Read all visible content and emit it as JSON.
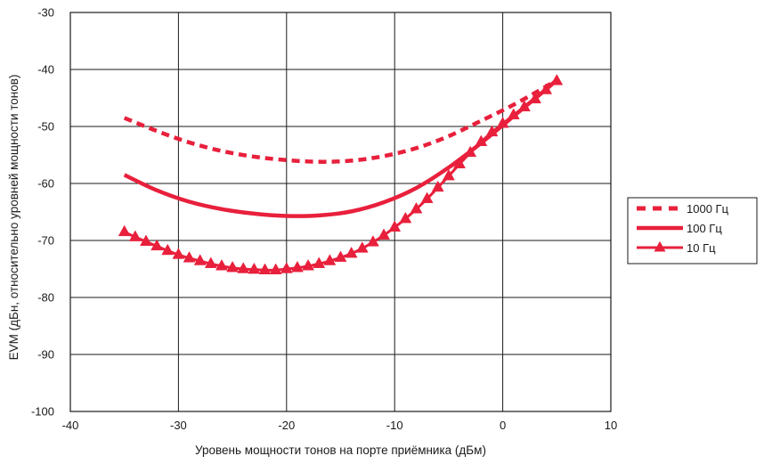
{
  "chart_data": {
    "type": "line",
    "title": "",
    "xlabel": "Уровень мощности тонов на порте приёмника (дБм)",
    "ylabel": "EVM (дБн, относительно уровней мощности тонов)",
    "xlim": [
      -40,
      10
    ],
    "ylim": [
      -100,
      -30
    ],
    "xticks": [
      -40,
      -30,
      -20,
      -10,
      0,
      10
    ],
    "yticks": [
      -100,
      -90,
      -80,
      -70,
      -60,
      -50,
      -40,
      -30
    ],
    "xtick_labels": [
      "-40",
      "-30",
      "-20",
      "-10",
      "0",
      "10"
    ],
    "ytick_labels": [
      "-100",
      "-90",
      "-80",
      "-70",
      "-60",
      "-50",
      "-40",
      "-30"
    ],
    "grid": true,
    "legend_position": "right",
    "color": "#e8203c",
    "series": [
      {
        "name": "1000 Гц",
        "style": "dashed",
        "x": [
          -35,
          -32,
          -29,
          -26,
          -23,
          -20,
          -17,
          -14,
          -11,
          -8,
          -5,
          -2,
          1,
          4,
          5
        ],
        "y": [
          -48.5,
          -50.8,
          -52.8,
          -54.3,
          -55.3,
          -55.9,
          -56.2,
          -56.0,
          -55.2,
          -53.8,
          -51.7,
          -49.0,
          -46.2,
          -43.0,
          -41.8
        ]
      },
      {
        "name": "100 Гц",
        "style": "solid",
        "x": [
          -35,
          -32,
          -29,
          -26,
          -23,
          -20,
          -17,
          -14,
          -11,
          -8,
          -5,
          -2,
          1,
          4,
          5
        ],
        "y": [
          -58.5,
          -61.2,
          -63.2,
          -64.5,
          -65.3,
          -65.7,
          -65.6,
          -64.9,
          -63.3,
          -60.8,
          -57.2,
          -52.9,
          -48.2,
          -43.5,
          -41.8
        ]
      },
      {
        "name": "10 Гц",
        "style": "triangle",
        "x": [
          -35,
          -34,
          -33,
          -32,
          -31,
          -30,
          -29,
          -28,
          -27,
          -26,
          -25,
          -24,
          -23,
          -22,
          -21,
          -20,
          -19,
          -18,
          -17,
          -16,
          -15,
          -14,
          -13,
          -12,
          -11,
          -10,
          -9,
          -8,
          -7,
          -6,
          -5,
          -4,
          -3,
          -2,
          -1,
          0,
          1,
          2,
          3,
          4,
          5
        ],
        "y": [
          -68.5,
          -69.4,
          -70.2,
          -71.0,
          -71.8,
          -72.5,
          -73.1,
          -73.6,
          -74.1,
          -74.5,
          -74.8,
          -75.0,
          -75.1,
          -75.2,
          -75.2,
          -75.0,
          -74.8,
          -74.5,
          -74.1,
          -73.6,
          -73.0,
          -72.3,
          -71.4,
          -70.3,
          -69.1,
          -67.7,
          -66.2,
          -64.5,
          -62.7,
          -60.7,
          -58.7,
          -56.6,
          -54.6,
          -52.7,
          -51.0,
          -49.5,
          -48.0,
          -46.6,
          -45.2,
          -43.6,
          -42.0
        ]
      }
    ]
  }
}
